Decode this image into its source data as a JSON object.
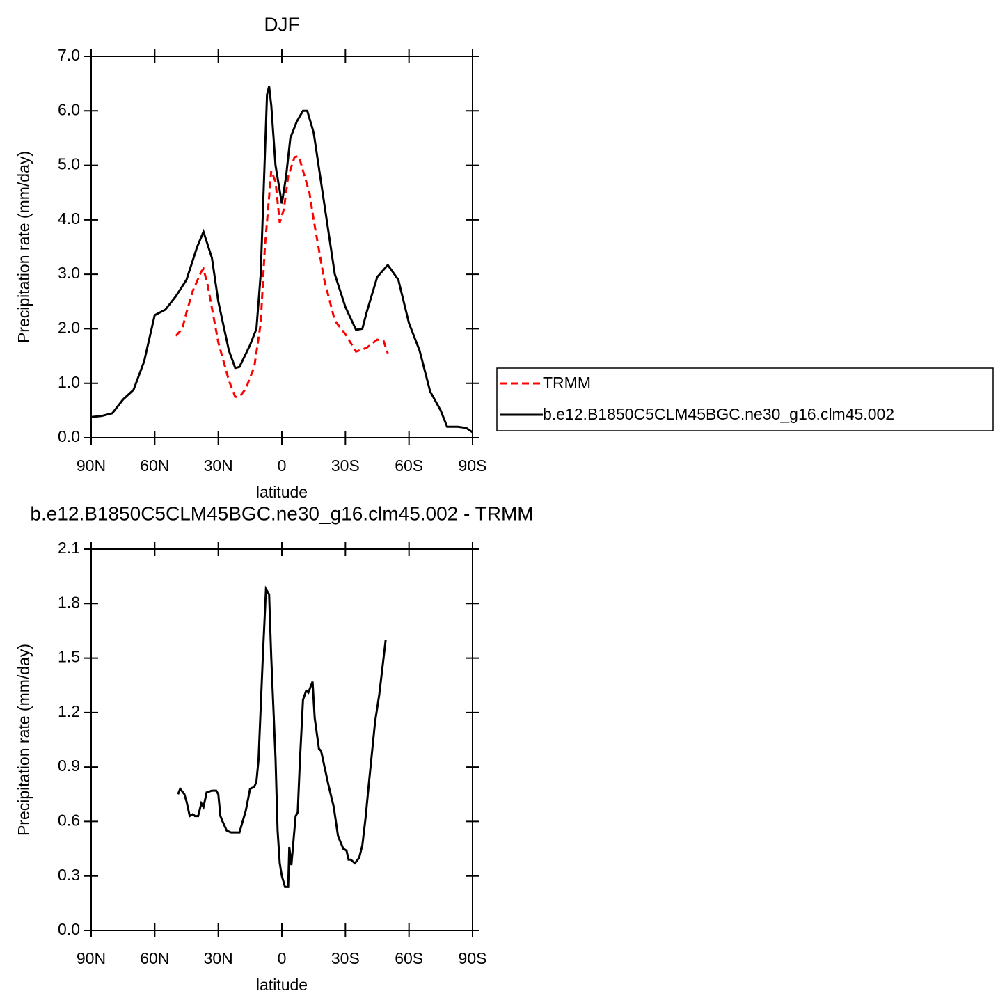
{
  "chart_data": [
    {
      "type": "line",
      "title": "DJF",
      "xlabel": "latitude",
      "ylabel": "Precipitation rate (mm/day)",
      "xlim": [
        90,
        -90
      ],
      "xticks": [
        {
          "value": 90,
          "label": "90N"
        },
        {
          "value": 60,
          "label": "60N"
        },
        {
          "value": 30,
          "label": "30N"
        },
        0,
        {
          "value": -30,
          "label": "30S"
        },
        {
          "value": -60,
          "label": "60S"
        },
        {
          "value": -90,
          "label": "90S"
        }
      ],
      "ylim": [
        0,
        7
      ],
      "yticks": [
        {
          "value": 0,
          "label": "0.0"
        },
        {
          "value": 1,
          "label": "1.0"
        },
        {
          "value": 2,
          "label": "2.0"
        },
        {
          "value": 3,
          "label": "3.0"
        },
        {
          "value": 4,
          "label": "4.0"
        },
        {
          "value": 5,
          "label": "5.0"
        },
        {
          "value": 6,
          "label": "6.0"
        },
        {
          "value": 7,
          "label": "7.0"
        }
      ],
      "legend": "right",
      "series": [
        {
          "name": "TRMM",
          "color": "#ff0000",
          "dash": true,
          "x": [
            50,
            47,
            45,
            42,
            38,
            37,
            35,
            30,
            25,
            22,
            20,
            17,
            13,
            10,
            8,
            5,
            3,
            1,
            -1,
            -3,
            -6,
            -8,
            -10,
            -13,
            -15,
            -20,
            -25,
            -30,
            -35,
            -40,
            -45,
            -48,
            -50
          ],
          "values": [
            1.87,
            2.0,
            2.3,
            2.7,
            3.05,
            3.1,
            2.8,
            1.75,
            1.05,
            0.75,
            0.75,
            0.9,
            1.3,
            2.1,
            3.5,
            4.9,
            4.7,
            3.95,
            4.2,
            4.8,
            5.15,
            5.17,
            4.9,
            4.5,
            4.0,
            2.9,
            2.15,
            1.9,
            1.58,
            1.65,
            1.8,
            1.78,
            1.55
          ]
        },
        {
          "name": "b.e12.B1850C5CLM45BGC.ne30_g16.clm45.002",
          "color": "#000000",
          "dash": false,
          "x": [
            90,
            85,
            80,
            75,
            70,
            65,
            60,
            55,
            50,
            45,
            40,
            37,
            33,
            30,
            25,
            22,
            20,
            15,
            12,
            10,
            7,
            6,
            5,
            3,
            0,
            -2,
            -4,
            -7,
            -10,
            -12,
            -15,
            -20,
            -25,
            -30,
            -35,
            -38,
            -40,
            -45,
            -50,
            -55,
            -60,
            -65,
            -70,
            -75,
            -78,
            -83,
            -87,
            -90
          ],
          "values": [
            0.38,
            0.4,
            0.45,
            0.7,
            0.88,
            1.4,
            2.25,
            2.35,
            2.6,
            2.9,
            3.5,
            3.78,
            3.3,
            2.5,
            1.6,
            1.28,
            1.3,
            1.7,
            2.0,
            3.0,
            6.3,
            6.45,
            6.1,
            5.0,
            4.3,
            4.8,
            5.5,
            5.8,
            6.0,
            6.0,
            5.6,
            4.3,
            3.0,
            2.4,
            1.98,
            2.0,
            2.3,
            2.95,
            3.17,
            2.9,
            2.1,
            1.6,
            0.85,
            0.5,
            0.2,
            0.2,
            0.18,
            0.1
          ]
        }
      ]
    },
    {
      "type": "line",
      "title": "b.e12.B1850C5CLM45BGC.ne30_g16.clm45.002 - TRMM",
      "xlabel": "latitude",
      "ylabel": "Precipitation rate (mm/day)",
      "xlim": [
        90,
        -90
      ],
      "xticks": [
        {
          "value": 90,
          "label": "90N"
        },
        {
          "value": 60,
          "label": "60N"
        },
        {
          "value": 30,
          "label": "30N"
        },
        0,
        {
          "value": -30,
          "label": "30S"
        },
        {
          "value": -60,
          "label": "60S"
        },
        {
          "value": -90,
          "label": "90S"
        }
      ],
      "ylim": [
        0,
        2.1
      ],
      "yticks": [
        {
          "value": 0,
          "label": "0.0"
        },
        0.3,
        0.6,
        0.9,
        1.2,
        1.5,
        1.8,
        2.1
      ],
      "series": [
        {
          "color": "#000000",
          "dash": false,
          "x": [
            49,
            48,
            46,
            45,
            43.5,
            42,
            41,
            39.5,
            38,
            37,
            35.5,
            33,
            31,
            30,
            29,
            28,
            26,
            24,
            20,
            17,
            15,
            13,
            12,
            11,
            9,
            7.5,
            6,
            5,
            3,
            2,
            1,
            0,
            -1.5,
            -3,
            -3.5,
            -4.5,
            -6.5,
            -7.5,
            -8.5,
            -10,
            -11.5,
            -12.5,
            -14.5,
            -15.5,
            -17.5,
            -18.5,
            -22,
            -24.5,
            -26.5,
            -29,
            -30.5,
            -31.5,
            -32.5,
            -34.5,
            -36.5,
            -38,
            -39.5,
            -41,
            -44,
            -46,
            -49
          ],
          "values": [
            0.75,
            0.78,
            0.75,
            0.71,
            0.63,
            0.64,
            0.63,
            0.63,
            0.7,
            0.68,
            0.76,
            0.77,
            0.77,
            0.75,
            0.63,
            0.6,
            0.55,
            0.54,
            0.54,
            0.66,
            0.78,
            0.79,
            0.82,
            0.94,
            1.5,
            1.88,
            1.85,
            1.5,
            0.95,
            0.55,
            0.37,
            0.3,
            0.24,
            0.24,
            0.46,
            0.36,
            0.63,
            0.65,
            0.93,
            1.27,
            1.32,
            1.31,
            1.37,
            1.17,
            1.0,
            0.99,
            0.8,
            0.68,
            0.52,
            0.45,
            0.44,
            0.39,
            0.39,
            0.37,
            0.4,
            0.47,
            0.62,
            0.8,
            1.15,
            1.3,
            1.6
          ]
        }
      ]
    }
  ]
}
